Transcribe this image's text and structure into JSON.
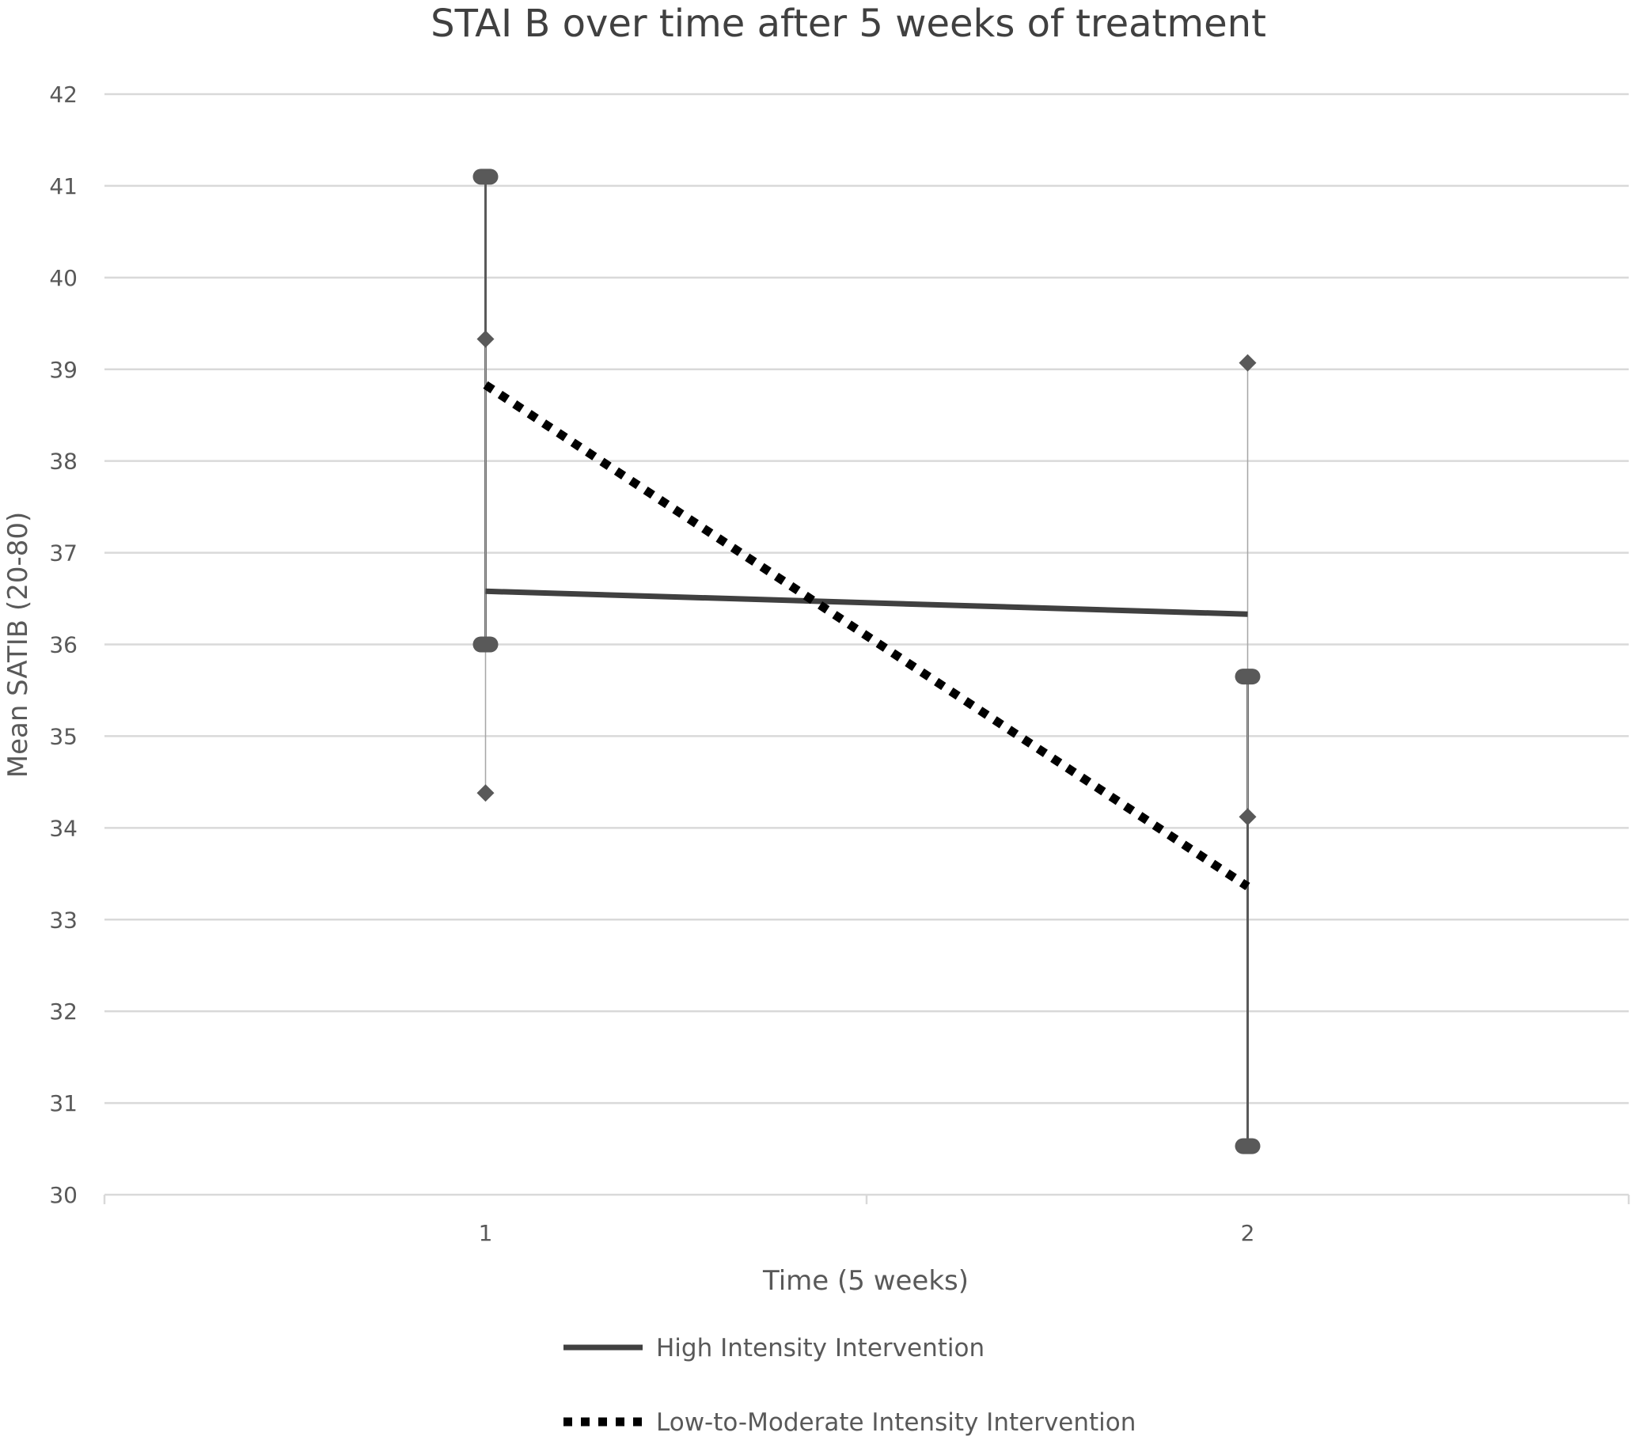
{
  "chart_data": {
    "type": "line",
    "title": "STAI B over time after 5 weeks of treatment",
    "xlabel": "Time (5 weeks)",
    "ylabel": "Mean SATIB (20-80)",
    "x": [
      1,
      2
    ],
    "x_tick_labels": [
      "1",
      "2"
    ],
    "ylim": [
      30,
      42
    ],
    "y_ticks": [
      30,
      31,
      32,
      33,
      34,
      35,
      36,
      37,
      38,
      39,
      40,
      41,
      42
    ],
    "grid": true,
    "legend_position": "bottom",
    "series": [
      {
        "name": "High Intensity Intervention",
        "style": "solid",
        "color": "#404040",
        "values": [
          36.58,
          36.33
        ],
        "error_bar_low": [
          36.0,
          30.53
        ],
        "error_bar_high": [
          41.1,
          35.65
        ]
      },
      {
        "name": "Low-to-Moderate Intensity Intervention",
        "style": "dotted",
        "color": "#000000",
        "values": [
          38.83,
          33.36
        ],
        "error_bar_low": [
          34.38,
          34.12
        ],
        "error_bar_high": [
          39.33,
          39.07
        ]
      }
    ]
  }
}
